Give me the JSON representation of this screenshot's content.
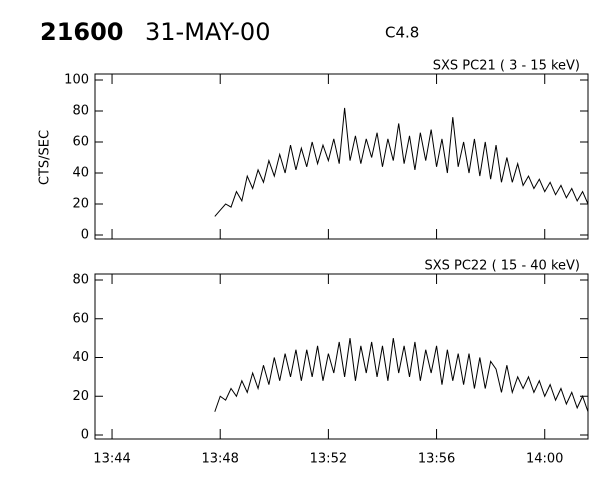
{
  "header": {
    "id": "21600",
    "date": "31-MAY-00",
    "class": "C4.8"
  },
  "chart_data": [
    {
      "type": "line",
      "title": "SXS PC21  (  3 - 15 keV)",
      "y_label": "CTS/SEC",
      "color": "#000000",
      "x": [
        47.8,
        48,
        48.2,
        48.4,
        48.6,
        48.8,
        49,
        49.2,
        49.4,
        49.6,
        49.8,
        50,
        50.2,
        50.4,
        50.6,
        50.8,
        51,
        51.2,
        51.4,
        51.6,
        51.8,
        52,
        52.2,
        52.4,
        52.6,
        52.8,
        53,
        53.2,
        53.4,
        53.6,
        53.8,
        54,
        54.2,
        54.4,
        54.6,
        54.8,
        55,
        55.2,
        55.4,
        55.6,
        55.8,
        56,
        56.2,
        56.4,
        56.6,
        56.8,
        57,
        57.2,
        57.4,
        57.6,
        57.8,
        58,
        58.2,
        58.4,
        58.6,
        58.8,
        59,
        59.2,
        59.4,
        59.6,
        59.8,
        60,
        60.2,
        60.4,
        60.6,
        60.8,
        61,
        61.2,
        61.4,
        61.6
      ],
      "values": [
        12,
        16,
        20,
        18,
        28,
        22,
        38,
        30,
        42,
        34,
        48,
        38,
        52,
        40,
        58,
        42,
        56,
        44,
        60,
        46,
        58,
        48,
        62,
        46,
        82,
        48,
        64,
        46,
        62,
        50,
        66,
        44,
        62,
        48,
        72,
        46,
        64,
        42,
        66,
        48,
        68,
        44,
        62,
        40,
        76,
        44,
        60,
        40,
        62,
        38,
        60,
        36,
        58,
        34,
        50,
        34,
        46,
        32,
        38,
        30,
        36,
        28,
        34,
        26,
        32,
        24,
        30,
        22,
        28,
        20
      ],
      "xlim": [
        43.37,
        61.6
      ],
      "ylim": [
        0,
        100
      ],
      "yticks": [
        0,
        20,
        40,
        60,
        80,
        100
      ]
    },
    {
      "type": "line",
      "title": "SXS PC22  ( 15 - 40 keV)",
      "color": "#000000",
      "x": [
        47.8,
        48,
        48.2,
        48.4,
        48.6,
        48.8,
        49,
        49.2,
        49.4,
        49.6,
        49.8,
        50,
        50.2,
        50.4,
        50.6,
        50.8,
        51,
        51.2,
        51.4,
        51.6,
        51.8,
        52,
        52.2,
        52.4,
        52.6,
        52.8,
        53,
        53.2,
        53.4,
        53.6,
        53.8,
        54,
        54.2,
        54.4,
        54.6,
        54.8,
        55,
        55.2,
        55.4,
        55.6,
        55.8,
        56,
        56.2,
        56.4,
        56.6,
        56.8,
        57,
        57.2,
        57.4,
        57.6,
        57.8,
        58,
        58.2,
        58.4,
        58.6,
        58.8,
        59,
        59.2,
        59.4,
        59.6,
        59.8,
        60,
        60.2,
        60.4,
        60.6,
        60.8,
        61,
        61.2,
        61.4,
        61.6
      ],
      "values": [
        12,
        20,
        18,
        24,
        20,
        28,
        22,
        32,
        24,
        36,
        26,
        40,
        28,
        42,
        30,
        44,
        28,
        44,
        30,
        46,
        28,
        42,
        32,
        48,
        30,
        50,
        28,
        46,
        32,
        48,
        30,
        46,
        28,
        50,
        32,
        46,
        30,
        48,
        28,
        44,
        32,
        46,
        26,
        44,
        28,
        42,
        26,
        42,
        24,
        40,
        24,
        38,
        34,
        22,
        36,
        22,
        30,
        24,
        30,
        22,
        28,
        20,
        26,
        18,
        24,
        16,
        22,
        14,
        20,
        12
      ],
      "xlim": [
        43.37,
        61.6
      ],
      "ylim": [
        0,
        80
      ],
      "yticks": [
        0,
        20,
        40,
        60,
        80
      ],
      "xticks": [
        {
          "value": 44,
          "label": "13:44"
        },
        {
          "value": 48,
          "label": "13:48"
        },
        {
          "value": 52,
          "label": "13:52"
        },
        {
          "value": 56,
          "label": "13:56"
        },
        {
          "value": 60,
          "label": "14:00"
        }
      ]
    }
  ]
}
